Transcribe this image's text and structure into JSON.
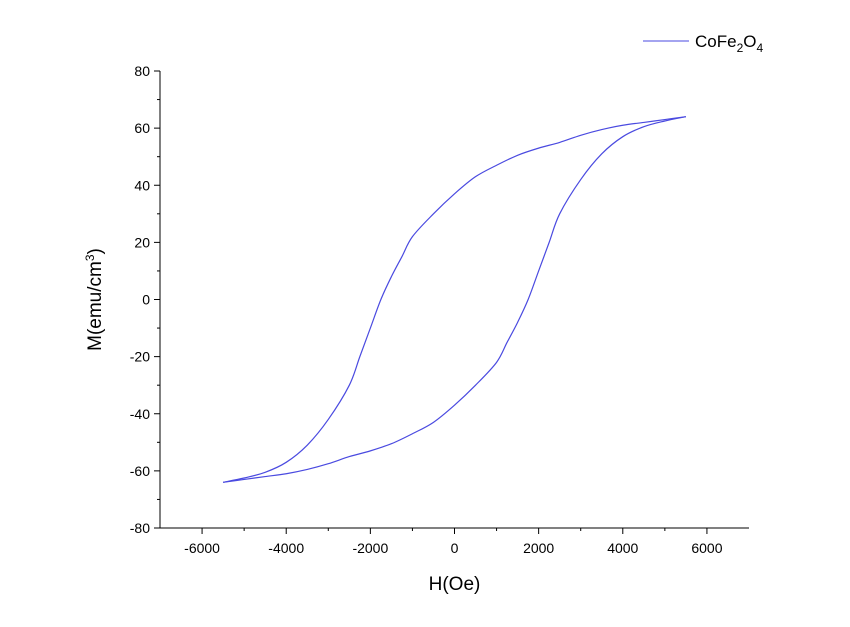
{
  "chart_data": {
    "type": "line",
    "title": "",
    "xlabel": "H(Oe)",
    "ylabel_main": "M(emu/cm",
    "ylabel_sup": "3",
    "ylabel_close": ")",
    "xlim": [
      -7000,
      7000
    ],
    "ylim": [
      -80,
      80
    ],
    "xticks": [
      -6000,
      -4000,
      -2000,
      0,
      2000,
      4000,
      6000
    ],
    "yticks": [
      -80,
      -60,
      -40,
      -20,
      0,
      20,
      40,
      60,
      80
    ],
    "grid": false,
    "legend_position": "top-right",
    "series": [
      {
        "legend": {
          "p1": "CoFe",
          "s1": "2",
          "p2": "O",
          "s2": "4"
        },
        "color": "#4a4ae0",
        "branches": [
          {
            "x": [
              5500,
              5000,
              4500,
              4000,
              3500,
              3000,
              2500,
              2000,
              1500,
              1000,
              500,
              0,
              -500,
              -1000,
              -1250,
              -1500,
              -1750,
              -2000,
              -2250,
              -2500,
              -3000,
              -3500,
              -4000,
              -4500,
              -5000,
              -5500
            ],
            "y": [
              64,
              63,
              62,
              61,
              59.5,
              57.5,
              55,
              53,
              50.5,
              47,
              43,
              37,
              30,
              22,
              15,
              8,
              0,
              -10,
              -20,
              -30,
              -42,
              -51,
              -57,
              -60.5,
              -62.5,
              -64
            ]
          },
          {
            "x": [
              -5500,
              -5000,
              -4500,
              -4000,
              -3500,
              -3000,
              -2500,
              -2000,
              -1500,
              -1000,
              -500,
              0,
              500,
              1000,
              1250,
              1500,
              1750,
              2000,
              2250,
              2500,
              3000,
              3500,
              4000,
              4500,
              5000,
              5500
            ],
            "y": [
              -64,
              -63,
              -62,
              -61,
              -59.5,
              -57.5,
              -55,
              -53,
              -50.5,
              -47,
              -43,
              -37,
              -30,
              -22,
              -15,
              -8,
              0,
              10,
              20,
              30,
              42,
              51,
              57,
              60.5,
              62.5,
              64
            ]
          }
        ]
      }
    ]
  }
}
